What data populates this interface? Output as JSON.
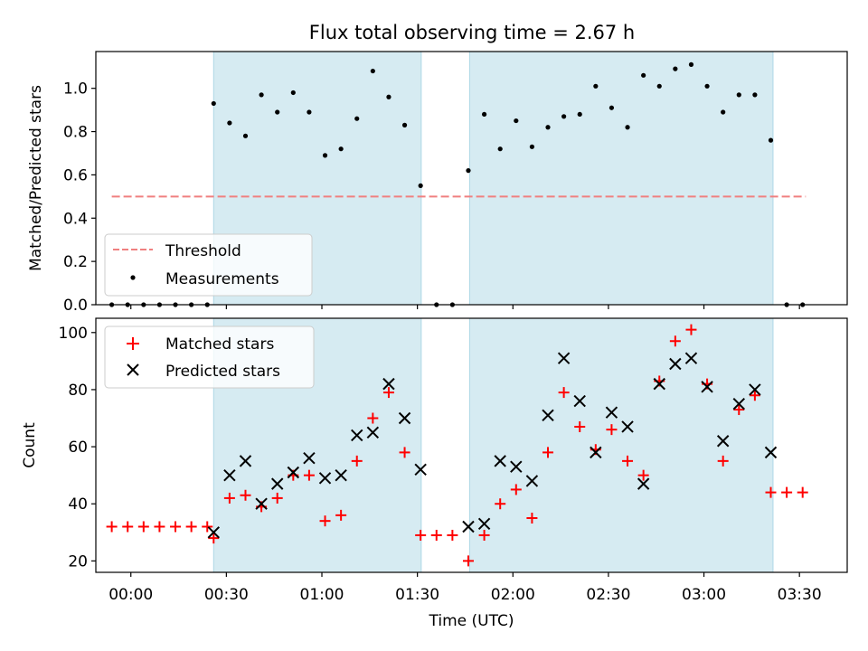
{
  "title": "Flux total observing time = 2.67 h",
  "colors": {
    "shade": "#add8e6",
    "threshold": "#f08080",
    "measurement": "#000000",
    "matched": "#ff0000",
    "predicted": "#000000"
  },
  "time_ticks": [
    "00:00",
    "00:30",
    "01:00",
    "01:30",
    "02:00",
    "02:30",
    "03:00",
    "03:30"
  ],
  "time_tick_minutes": [
    0,
    30,
    60,
    90,
    120,
    150,
    180,
    210
  ],
  "chart_data": [
    {
      "type": "scatter",
      "ylabel": "Matched/Predicted stars",
      "xlabel": "",
      "xlim_minutes": [
        -11,
        225
      ],
      "ylim": [
        0,
        1.17
      ],
      "yticks": [
        "0.0",
        "0.2",
        "0.4",
        "0.6",
        "0.8",
        "1.0"
      ],
      "ytick_values": [
        0,
        0.2,
        0.4,
        0.6,
        0.8,
        1.0
      ],
      "shaded_intervals_minutes": [
        [
          26,
          91.2
        ],
        [
          106.4,
          201.7
        ]
      ],
      "threshold": {
        "name": "Threshold",
        "value": 0.5,
        "x_range_minutes": [
          -6,
          212
        ]
      },
      "legend": {
        "placement": "lower-left",
        "entries": [
          "Threshold",
          "Measurements"
        ]
      },
      "series": [
        {
          "name": "Measurements",
          "x_minutes": [
            -6,
            -1,
            4,
            9,
            14,
            19,
            24,
            26,
            31,
            36,
            41,
            46,
            51,
            56,
            61,
            66,
            71,
            76,
            81,
            86,
            91,
            96,
            101,
            106,
            111,
            116,
            121,
            126,
            131,
            136,
            141,
            146,
            151,
            156,
            161,
            166,
            171,
            176,
            181,
            186,
            191,
            196,
            201,
            206,
            211
          ],
          "y": [
            0,
            0,
            0,
            0,
            0,
            0,
            0,
            0.93,
            0.84,
            0.78,
            0.97,
            0.89,
            0.98,
            0.89,
            0.69,
            0.72,
            0.86,
            1.08,
            0.96,
            0.83,
            0.55,
            0,
            0,
            0.62,
            0.88,
            0.72,
            0.85,
            0.73,
            0.82,
            0.87,
            0.88,
            1.01,
            0.91,
            0.82,
            1.06,
            1.01,
            1.09,
            1.11,
            1.01,
            0.89,
            0.97,
            0.97,
            0.76,
            0,
            0
          ]
        }
      ]
    },
    {
      "type": "scatter",
      "ylabel": "Count",
      "xlabel": "Time (UTC)",
      "xlim_minutes": [
        -11,
        225
      ],
      "ylim": [
        16,
        105
      ],
      "yticks": [
        "20",
        "40",
        "60",
        "80",
        "100"
      ],
      "ytick_values": [
        20,
        40,
        60,
        80,
        100
      ],
      "shaded_intervals_minutes": [
        [
          26,
          91.2
        ],
        [
          106.4,
          201.7
        ]
      ],
      "legend": {
        "placement": "upper-left",
        "entries": [
          "Matched stars",
          "Predicted stars"
        ]
      },
      "series": [
        {
          "name": "Matched stars",
          "marker": "plus",
          "x_minutes": [
            -6,
            -1,
            4,
            9,
            14,
            19,
            24,
            26,
            31,
            36,
            41,
            46,
            51,
            56,
            61,
            66,
            71,
            76,
            81,
            86,
            91,
            96,
            101,
            106,
            111,
            116,
            121,
            126,
            131,
            136,
            141,
            146,
            151,
            156,
            161,
            166,
            171,
            176,
            181,
            186,
            191,
            196,
            201,
            206,
            211
          ],
          "y": [
            32,
            32,
            32,
            32,
            32,
            32,
            32,
            28,
            42,
            43,
            39,
            42,
            50,
            50,
            34,
            36,
            55,
            70,
            79,
            58,
            29,
            29,
            29,
            20,
            29,
            40,
            45,
            35,
            58,
            79,
            67,
            59,
            66,
            55,
            50,
            83,
            97,
            101,
            82,
            55,
            73,
            78,
            44,
            44,
            44
          ]
        },
        {
          "name": "Predicted stars",
          "marker": "x",
          "x_minutes": [
            26,
            31,
            36,
            41,
            46,
            51,
            56,
            61,
            66,
            71,
            76,
            81,
            86,
            91,
            106,
            111,
            116,
            121,
            126,
            131,
            136,
            141,
            146,
            151,
            156,
            161,
            166,
            171,
            176,
            181,
            186,
            191,
            196,
            201
          ],
          "y": [
            30,
            50,
            55,
            40,
            47,
            51,
            56,
            49,
            50,
            64,
            65,
            82,
            70,
            52,
            32,
            33,
            55,
            53,
            48,
            71,
            91,
            76,
            58,
            72,
            67,
            47,
            82,
            89,
            91,
            81,
            62,
            75,
            80,
            58
          ]
        }
      ]
    }
  ]
}
